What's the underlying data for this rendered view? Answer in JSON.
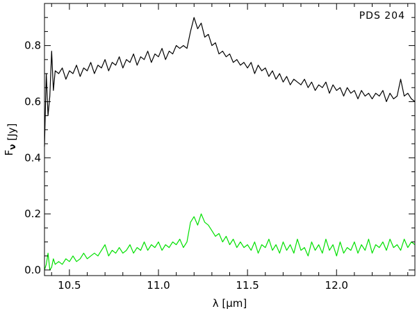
{
  "chart_data": {
    "type": "line",
    "annotation": "PDS 204",
    "xlabel": "λ [μm]",
    "ylabel": "F_ν [Jy]",
    "ylabel_main": "F",
    "ylabel_sub": "ν",
    "ylabel_unit": "[Jy]",
    "xlim": [
      10.36,
      12.44
    ],
    "ylim": [
      -0.02,
      0.95
    ],
    "xticks_major": [
      10.5,
      11.0,
      11.5,
      12.0
    ],
    "xtick_labels": [
      "10.5",
      "11.0",
      "11.5",
      "12.0"
    ],
    "yticks_major": [
      0.0,
      0.2,
      0.4,
      0.6,
      0.8
    ],
    "ytick_labels": [
      "0.0",
      "0.2",
      "0.4",
      "0.6",
      "0.8"
    ],
    "grid": false,
    "legend": "none",
    "colors": {
      "total": "#000000",
      "residual": "#00e000"
    },
    "series": [
      {
        "color_key": "total",
        "x": [
          10.36,
          10.37,
          10.38,
          10.39,
          10.4,
          10.41,
          10.42,
          10.44,
          10.46,
          10.48,
          10.5,
          10.52,
          10.54,
          10.56,
          10.58,
          10.6,
          10.62,
          10.64,
          10.66,
          10.68,
          10.7,
          10.72,
          10.74,
          10.76,
          10.78,
          10.8,
          10.82,
          10.84,
          10.86,
          10.88,
          10.9,
          10.92,
          10.94,
          10.96,
          10.98,
          11.0,
          11.02,
          11.04,
          11.06,
          11.08,
          11.1,
          11.12,
          11.14,
          11.16,
          11.18,
          11.2,
          11.22,
          11.24,
          11.26,
          11.28,
          11.3,
          11.32,
          11.34,
          11.36,
          11.38,
          11.4,
          11.42,
          11.44,
          11.46,
          11.48,
          11.5,
          11.52,
          11.54,
          11.56,
          11.58,
          11.6,
          11.62,
          11.64,
          11.66,
          11.68,
          11.7,
          11.72,
          11.74,
          11.76,
          11.78,
          11.8,
          11.82,
          11.84,
          11.86,
          11.88,
          11.9,
          11.92,
          11.94,
          11.96,
          11.98,
          12.0,
          12.02,
          12.04,
          12.06,
          12.08,
          12.1,
          12.12,
          12.14,
          12.16,
          12.18,
          12.2,
          12.22,
          12.24,
          12.26,
          12.28,
          12.3,
          12.32,
          12.34,
          12.36,
          12.38,
          12.4,
          12.42,
          12.44
        ],
        "y": [
          0.44,
          0.7,
          0.55,
          0.62,
          0.78,
          0.64,
          0.71,
          0.7,
          0.72,
          0.68,
          0.71,
          0.7,
          0.73,
          0.69,
          0.72,
          0.71,
          0.74,
          0.7,
          0.73,
          0.72,
          0.75,
          0.71,
          0.74,
          0.73,
          0.76,
          0.72,
          0.75,
          0.74,
          0.77,
          0.73,
          0.76,
          0.75,
          0.78,
          0.74,
          0.77,
          0.76,
          0.79,
          0.75,
          0.78,
          0.77,
          0.8,
          0.79,
          0.8,
          0.79,
          0.85,
          0.9,
          0.86,
          0.88,
          0.83,
          0.84,
          0.8,
          0.81,
          0.77,
          0.78,
          0.76,
          0.77,
          0.74,
          0.75,
          0.73,
          0.74,
          0.72,
          0.74,
          0.7,
          0.73,
          0.71,
          0.72,
          0.69,
          0.71,
          0.68,
          0.7,
          0.67,
          0.69,
          0.66,
          0.68,
          0.67,
          0.66,
          0.68,
          0.65,
          0.67,
          0.64,
          0.66,
          0.65,
          0.67,
          0.63,
          0.66,
          0.64,
          0.65,
          0.62,
          0.65,
          0.63,
          0.64,
          0.61,
          0.64,
          0.62,
          0.63,
          0.61,
          0.63,
          0.62,
          0.64,
          0.6,
          0.63,
          0.61,
          0.62,
          0.68,
          0.62,
          0.63,
          0.61,
          0.6
        ]
      },
      {
        "color_key": "residual",
        "x": [
          10.36,
          10.37,
          10.38,
          10.39,
          10.4,
          10.41,
          10.42,
          10.44,
          10.46,
          10.48,
          10.5,
          10.52,
          10.54,
          10.56,
          10.58,
          10.6,
          10.62,
          10.64,
          10.66,
          10.68,
          10.7,
          10.72,
          10.74,
          10.76,
          10.78,
          10.8,
          10.82,
          10.84,
          10.86,
          10.88,
          10.9,
          10.92,
          10.94,
          10.96,
          10.98,
          11.0,
          11.02,
          11.04,
          11.06,
          11.08,
          11.1,
          11.12,
          11.14,
          11.16,
          11.18,
          11.2,
          11.22,
          11.24,
          11.26,
          11.28,
          11.3,
          11.32,
          11.34,
          11.36,
          11.38,
          11.4,
          11.42,
          11.44,
          11.46,
          11.48,
          11.5,
          11.52,
          11.54,
          11.56,
          11.58,
          11.6,
          11.62,
          11.64,
          11.66,
          11.68,
          11.7,
          11.72,
          11.74,
          11.76,
          11.78,
          11.8,
          11.82,
          11.84,
          11.86,
          11.88,
          11.9,
          11.92,
          11.94,
          11.96,
          11.98,
          12.0,
          12.02,
          12.04,
          12.06,
          12.08,
          12.1,
          12.12,
          12.14,
          12.16,
          12.18,
          12.2,
          12.22,
          12.24,
          12.26,
          12.28,
          12.3,
          12.32,
          12.34,
          12.36,
          12.38,
          12.4,
          12.42,
          12.44
        ],
        "y": [
          0.0,
          0.02,
          0.06,
          0.0,
          0.01,
          0.04,
          0.02,
          0.03,
          0.02,
          0.04,
          0.03,
          0.05,
          0.03,
          0.04,
          0.06,
          0.04,
          0.05,
          0.06,
          0.05,
          0.07,
          0.09,
          0.05,
          0.07,
          0.06,
          0.08,
          0.06,
          0.07,
          0.09,
          0.06,
          0.08,
          0.07,
          0.1,
          0.07,
          0.09,
          0.08,
          0.1,
          0.07,
          0.09,
          0.08,
          0.1,
          0.09,
          0.11,
          0.08,
          0.1,
          0.17,
          0.19,
          0.16,
          0.2,
          0.17,
          0.16,
          0.14,
          0.12,
          0.13,
          0.1,
          0.12,
          0.09,
          0.11,
          0.08,
          0.1,
          0.08,
          0.09,
          0.07,
          0.1,
          0.06,
          0.09,
          0.08,
          0.11,
          0.07,
          0.09,
          0.06,
          0.1,
          0.07,
          0.09,
          0.06,
          0.11,
          0.07,
          0.08,
          0.05,
          0.1,
          0.07,
          0.09,
          0.06,
          0.11,
          0.07,
          0.09,
          0.05,
          0.1,
          0.06,
          0.08,
          0.07,
          0.1,
          0.06,
          0.09,
          0.07,
          0.11,
          0.06,
          0.09,
          0.08,
          0.1,
          0.07,
          0.11,
          0.08,
          0.09,
          0.07,
          0.11,
          0.08,
          0.1,
          0.09
        ]
      }
    ]
  }
}
